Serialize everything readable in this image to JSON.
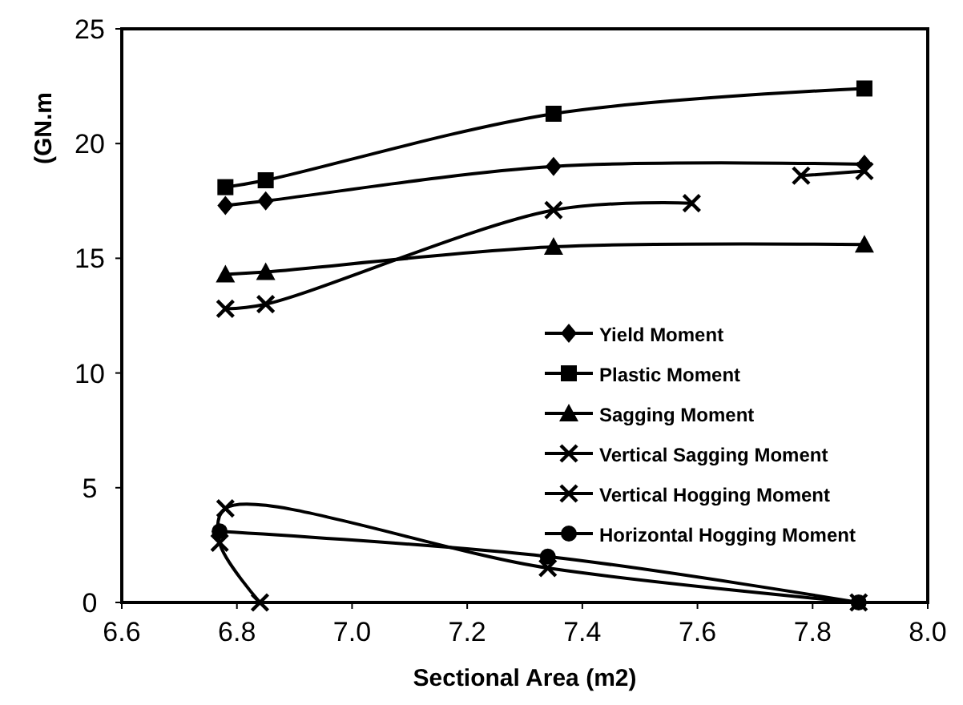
{
  "chart_data": {
    "type": "line",
    "xlabel": "Sectional Area (m2)",
    "ylabel": "(GN.m",
    "xlim": [
      6.6,
      8.0
    ],
    "ylim": [
      0,
      25
    ],
    "xticks": [
      {
        "value": 6.6,
        "label": "6.6"
      },
      {
        "value": 6.8,
        "label": "6.8"
      },
      {
        "value": 7.0,
        "label": "7.0"
      },
      {
        "value": 7.2,
        "label": "7.2"
      },
      {
        "value": 7.4,
        "label": "7.4"
      },
      {
        "value": 7.6,
        "label": "7.6"
      },
      {
        "value": 7.8,
        "label": "7.8"
      },
      {
        "value": 8.0,
        "label": "8.0"
      }
    ],
    "yticks": [
      0,
      5,
      10,
      15,
      20,
      25
    ],
    "grid": false,
    "legend": "right",
    "line_style": "solid",
    "series": [
      {
        "name": "Yield Moment",
        "color": "#000000",
        "marker": "diamond",
        "x": [
          6.78,
          6.85,
          7.35,
          7.89
        ],
        "values": [
          17.3,
          17.5,
          19.0,
          19.1
        ]
      },
      {
        "name": "Plastic Moment",
        "color": "#000000",
        "marker": "square",
        "x": [
          6.78,
          6.85,
          7.35,
          7.89
        ],
        "values": [
          18.1,
          18.4,
          21.3,
          22.4
        ]
      },
      {
        "name": "Sagging Moment",
        "color": "#000000",
        "marker": "triangle",
        "x": [
          6.78,
          6.85,
          7.35,
          7.89
        ],
        "values": [
          14.3,
          14.4,
          15.5,
          15.6
        ]
      },
      {
        "name": "Vertical Sagging Moment",
        "color": "#000000",
        "marker": "cross",
        "x": [
          6.78,
          6.85,
          7.35,
          7.59
        ],
        "values": [
          12.8,
          13.0,
          17.1,
          17.4
        ]
      },
      {
        "name": "Vertical Hogging Moment",
        "color": "#000000",
        "marker": "cross",
        "x": [
          6.84,
          6.77,
          6.78,
          7.34,
          7.88
        ],
        "values": [
          0,
          2.6,
          4.1,
          1.5,
          0
        ]
      },
      {
        "name": "Horizontal Hogging Moment",
        "color": "#000000",
        "marker": "circle",
        "x": [
          6.77,
          7.34,
          7.88
        ],
        "values": [
          3.1,
          2.0,
          0
        ]
      },
      {
        "color": "#000000",
        "marker": "cross",
        "x": [
          7.78,
          7.89
        ],
        "values": [
          18.6,
          18.8
        ]
      }
    ]
  }
}
